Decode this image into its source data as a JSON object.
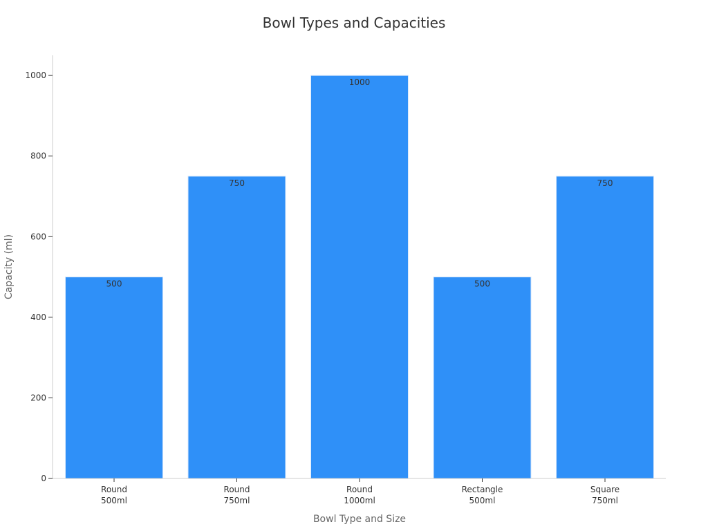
{
  "chart_data": {
    "type": "bar",
    "title": "Bowl Types and Capacities",
    "xlabel": "Bowl Type and Size",
    "ylabel": "Capacity (ml)",
    "categories": [
      [
        "Round",
        "500ml"
      ],
      [
        "Round",
        "750ml"
      ],
      [
        "Round",
        "1000ml"
      ],
      [
        "Rectangle",
        "500ml"
      ],
      [
        "Square",
        "750ml"
      ]
    ],
    "values": [
      500,
      750,
      1000,
      500,
      750
    ],
    "data_labels": [
      "500",
      "750",
      "1000",
      "500",
      "750"
    ],
    "ylim": [
      0,
      1050
    ],
    "yticks": [
      0,
      200,
      400,
      600,
      800,
      1000
    ],
    "grid": false,
    "legend": "none",
    "bar_color": "#2f90f8",
    "bar_edge_color": "#d8e8fb"
  }
}
